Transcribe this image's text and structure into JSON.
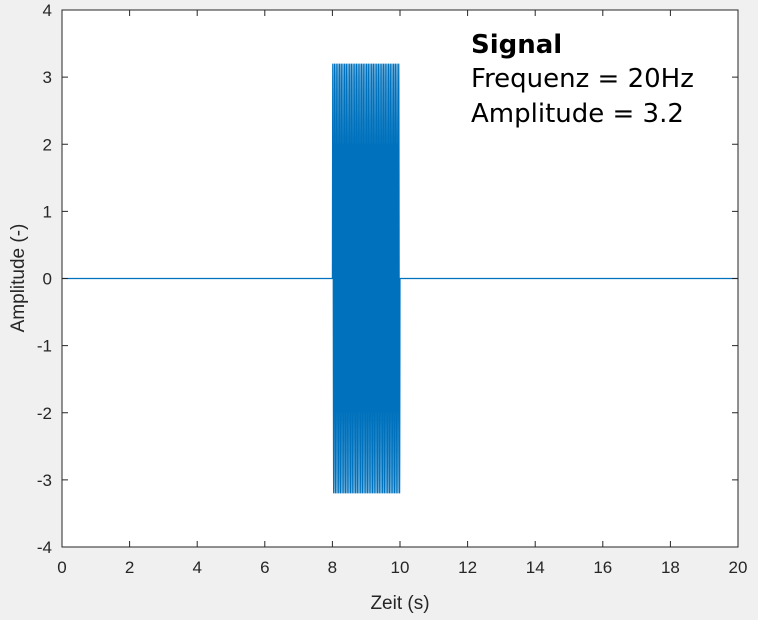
{
  "chart_data": {
    "type": "line",
    "xlabel": "Zeit (s)",
    "ylabel": "Amplitude (-)",
    "xlim": [
      0,
      20
    ],
    "ylim": [
      -4,
      4
    ],
    "xticks": [
      0,
      2,
      4,
      6,
      8,
      10,
      12,
      14,
      16,
      18,
      20
    ],
    "yticks": [
      -4,
      -3,
      -2,
      -1,
      0,
      1,
      2,
      3,
      4
    ],
    "grid": false,
    "series": [
      {
        "color": "#0072bd",
        "signal": {
          "frequency": 20,
          "amplitude": 3.2,
          "t_start": 8,
          "t_end": 10
        },
        "x": [
          0,
          8,
          10,
          20
        ],
        "y": [
          0,
          0,
          0,
          0
        ]
      }
    ],
    "annotations": [
      {
        "text": "Signal",
        "bold": true
      },
      {
        "text": "Frequenz = 20Hz",
        "bold": false
      },
      {
        "text": "Amplitude = 3.2",
        "bold": false
      }
    ]
  }
}
